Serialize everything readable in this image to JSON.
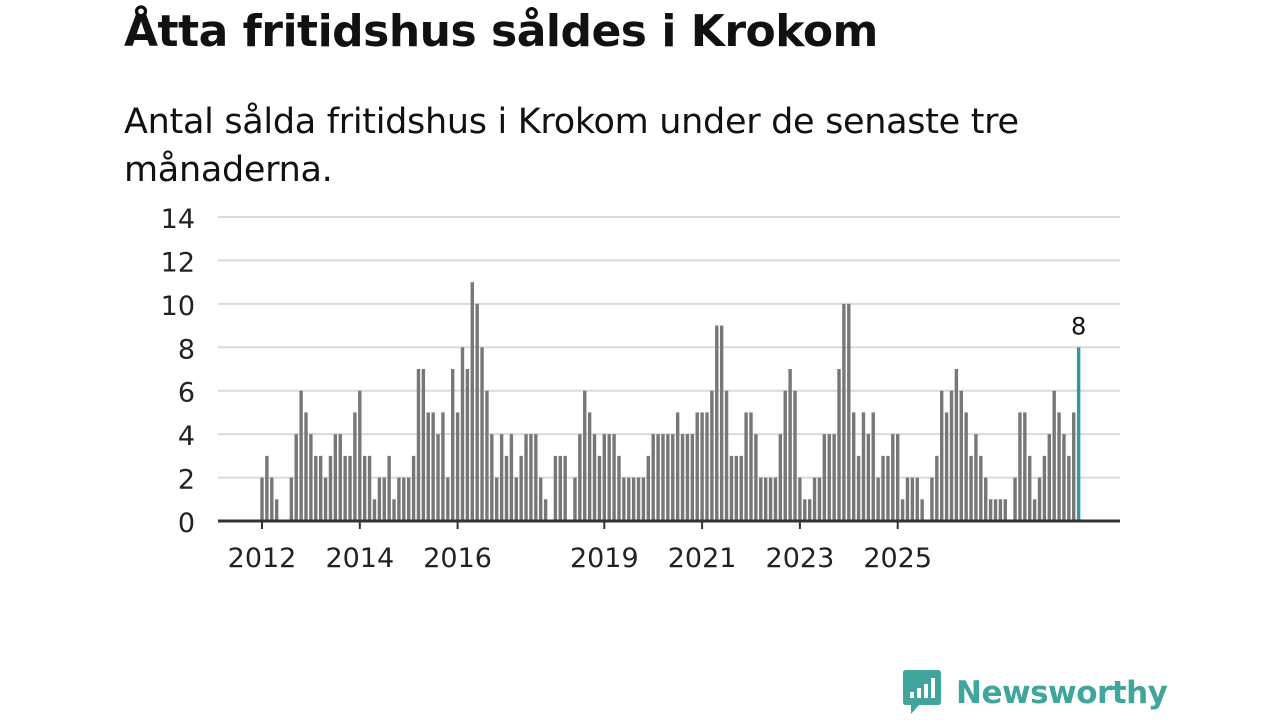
{
  "header": {
    "title": "Åtta fritidshus såldes i Krokom",
    "subtitle": "Antal sålda fritidshus i Krokom under de senaste tre månaderna."
  },
  "brand": {
    "name": "Newsworthy",
    "color": "#40a59a"
  },
  "chart_data": {
    "type": "bar",
    "title": "Åtta fritidshus såldes i Krokom",
    "subtitle": "Antal sålda fritidshus i Krokom under de senaste tre månaderna.",
    "xlabel": "",
    "ylabel": "",
    "ylim": [
      0,
      14
    ],
    "yticks": [
      0,
      2,
      4,
      6,
      8,
      10,
      12,
      14
    ],
    "grid": true,
    "x_start_period": "2012-02",
    "x_tick_labels": [
      {
        "label": "2012",
        "index": 0
      },
      {
        "label": "2014",
        "index": 20
      },
      {
        "label": "2016",
        "index": 40
      },
      {
        "label": "2019",
        "index": 70
      },
      {
        "label": "2021",
        "index": 90
      },
      {
        "label": "2023",
        "index": 110
      },
      {
        "label": "2025",
        "index": 130
      }
    ],
    "values": [
      2,
      3,
      2,
      1,
      0,
      0,
      2,
      4,
      6,
      5,
      4,
      3,
      3,
      2,
      3,
      4,
      4,
      3,
      3,
      5,
      6,
      3,
      3,
      1,
      2,
      2,
      3,
      1,
      2,
      2,
      2,
      3,
      7,
      7,
      5,
      5,
      4,
      5,
      2,
      7,
      5,
      8,
      7,
      11,
      10,
      8,
      6,
      4,
      2,
      4,
      3,
      4,
      2,
      3,
      4,
      4,
      4,
      2,
      1,
      0,
      3,
      3,
      3,
      0,
      2,
      4,
      6,
      5,
      4,
      3,
      4,
      4,
      4,
      3,
      2,
      2,
      2,
      2,
      2,
      3,
      4,
      4,
      4,
      4,
      4,
      5,
      4,
      4,
      4,
      5,
      5,
      5,
      6,
      9,
      9,
      6,
      3,
      3,
      3,
      5,
      5,
      4,
      2,
      2,
      2,
      2,
      4,
      6,
      7,
      6,
      2,
      1,
      1,
      2,
      2,
      4,
      4,
      4,
      7,
      10,
      10,
      5,
      3,
      5,
      4,
      5,
      2,
      3,
      3,
      4,
      4,
      1,
      2,
      2,
      2,
      1,
      0,
      2,
      3,
      6,
      5,
      6,
      7,
      6,
      5,
      3,
      4,
      3,
      2,
      1,
      1,
      1,
      1,
      0,
      2,
      5,
      5,
      3,
      1,
      2,
      3,
      4,
      6,
      5,
      4,
      3,
      5,
      8
    ],
    "highlight_color": "#2e9aa0",
    "bar_color": "#777779",
    "annotation": "8"
  }
}
